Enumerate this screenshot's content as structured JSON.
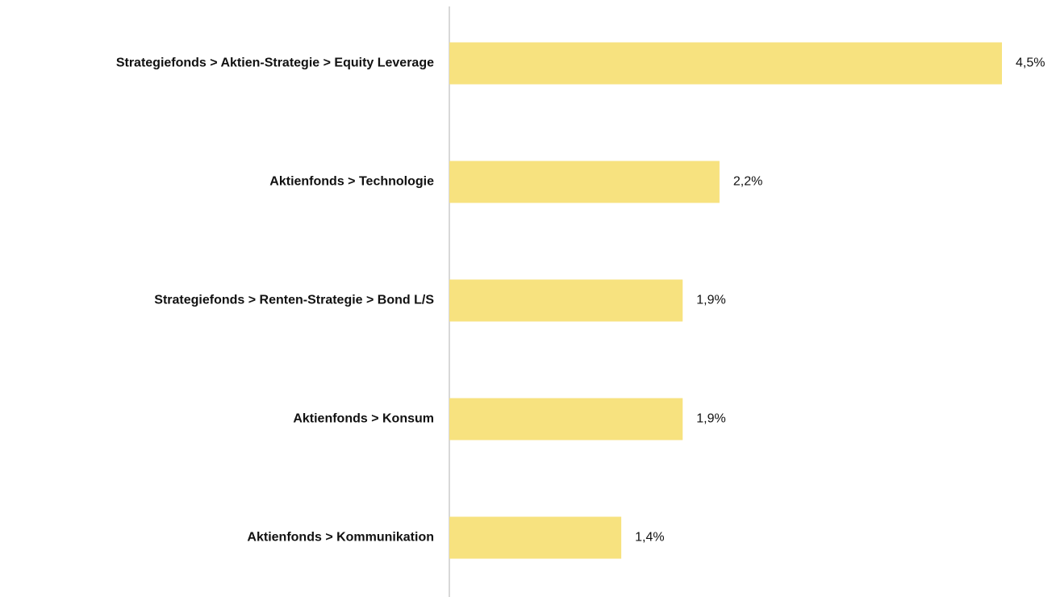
{
  "chart_data": {
    "type": "bar",
    "orientation": "horizontal",
    "categories": [
      "Strategiefonds > Aktien-Strategie > Equity Leverage",
      "Aktienfonds > Technologie",
      "Strategiefonds > Renten-Strategie > Bond L/S",
      "Aktienfonds > Konsum",
      "Aktienfonds > Kommunikation"
    ],
    "values": [
      4.5,
      2.2,
      1.9,
      1.9,
      1.4
    ],
    "value_labels": [
      "4,5%",
      "2,2%",
      "1,9%",
      "1,9%",
      "1,4%"
    ],
    "color": "#f7e27f"
  }
}
